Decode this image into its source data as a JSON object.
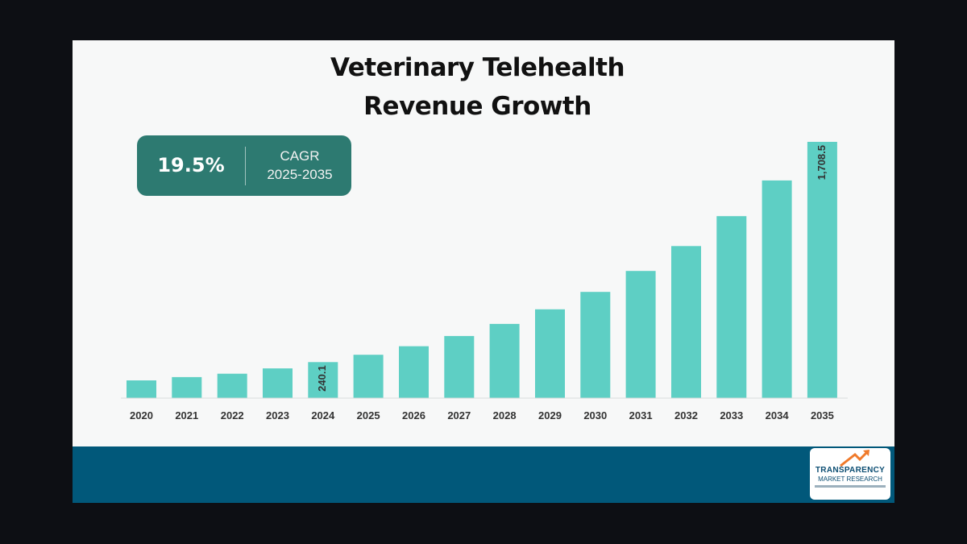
{
  "title_line1": "Veterinary Telehealth",
  "title_line2": "Revenue Growth",
  "cagr": {
    "value": "19.5%",
    "label": "CAGR",
    "period": "2025-2035"
  },
  "logo": {
    "line1": "TRANSPARENCY",
    "line2": "MARKET RESEARCH"
  },
  "colors": {
    "bar": "#5ecfc4",
    "card": "#f7f8f8",
    "footer": "#01587a",
    "cagr_box": "#2d7a71"
  },
  "chart_data": {
    "type": "bar",
    "title": "Veterinary Telehealth Revenue Growth",
    "xlabel": "",
    "ylabel": "",
    "categories": [
      "2020",
      "2021",
      "2022",
      "2023",
      "2024",
      "2025",
      "2026",
      "2027",
      "2028",
      "2029",
      "2030",
      "2031",
      "2032",
      "2033",
      "2034",
      "2035"
    ],
    "values": [
      118,
      140,
      163,
      198,
      240.1,
      289,
      346,
      414,
      495,
      592,
      708,
      848,
      1014,
      1213,
      1451,
      1708.5
    ],
    "data_labels": {
      "4": "240.1",
      "15": "1,708.5"
    },
    "ylim": [
      0,
      1708.5
    ],
    "grid": false,
    "legend": "none"
  }
}
